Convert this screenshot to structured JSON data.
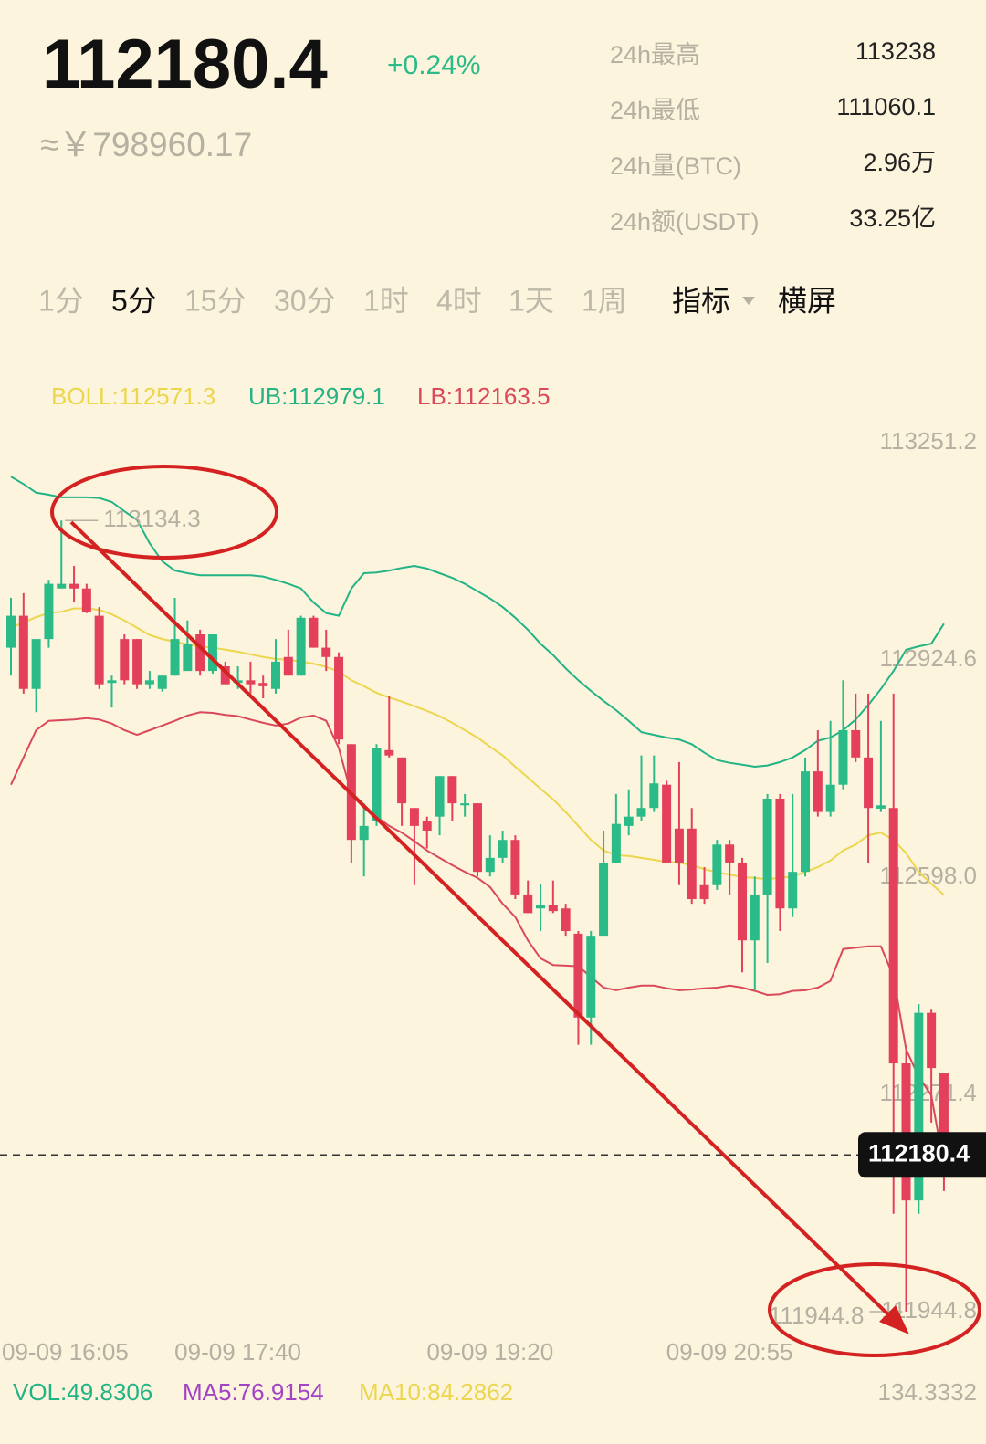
{
  "header": {
    "price": "112180.4",
    "change": "+0.24%",
    "approx": "≈￥798960.17"
  },
  "stats": [
    {
      "label": "24h最高",
      "value": "113238"
    },
    {
      "label": "24h最低",
      "value": "111060.1"
    },
    {
      "label": "24h量(BTC)",
      "value": "2.96万"
    },
    {
      "label": "24h额(USDT)",
      "value": "33.25亿"
    }
  ],
  "tabs": [
    "1分",
    "5分",
    "15分",
    "30分",
    "1时",
    "4时",
    "1天",
    "1周"
  ],
  "active_tab": "5分",
  "tools": [
    "指标",
    "横屏"
  ],
  "volume": {
    "legend": [
      {
        "text": "VOL:49.8306",
        "color": "#1fb386"
      },
      {
        "text": "MA5:76.9154",
        "color": "#a242c4"
      },
      {
        "text": "MA10:84.2862",
        "color": "#ecd64e"
      }
    ],
    "axis_label": "134.3332"
  },
  "chart_data": {
    "type": "candlestick",
    "categories": [
      "09-09 16:05",
      null,
      null,
      null,
      null,
      null,
      null,
      null,
      null,
      null,
      null,
      null,
      null,
      null,
      null,
      null,
      null,
      null,
      "09-09 17:40",
      null,
      null,
      null,
      null,
      null,
      null,
      null,
      null,
      null,
      null,
      null,
      null,
      null,
      null,
      null,
      null,
      null,
      null,
      null,
      "09-09 19:20",
      null,
      null,
      null,
      null,
      null,
      null,
      null,
      null,
      null,
      null,
      null,
      null,
      null,
      null,
      null,
      null,
      null,
      null,
      "09-09 20:55",
      null,
      null,
      null,
      null,
      null,
      null,
      null,
      null,
      null,
      null,
      null,
      null,
      null,
      null,
      null,
      null,
      null
    ],
    "open": [
      112943,
      112991,
      112881,
      112956,
      113032,
      113039,
      113032,
      112991,
      112890,
      112956,
      112956,
      112888,
      112881,
      112901,
      112908,
      112963,
      112908,
      112915,
      112890,
      112894,
      112890,
      112881,
      112929,
      112901,
      112988,
      112943,
      112929,
      112798,
      112654,
      112682,
      112789,
      112778,
      112702,
      112682,
      112689,
      112750,
      112706,
      112709,
      112606,
      112627,
      112654,
      112572,
      112551,
      112556,
      112551,
      112513,
      112387,
      112510,
      112620,
      112675,
      112689,
      112702,
      112737,
      112671,
      112671,
      112586,
      112586,
      112647,
      112620,
      112503,
      112572,
      112716,
      112551,
      112606,
      112757,
      112696,
      112737,
      112819,
      112778,
      112701,
      112702,
      112318,
      112112,
      112394,
      112304
    ],
    "high": [
      113018,
      113025,
      112956,
      113045,
      113134.3,
      113066,
      113039,
      113004,
      112901,
      112963,
      112956,
      112908,
      112901,
      113018,
      112984,
      112970,
      112963,
      112922,
      112915,
      112922,
      112901,
      112956,
      112970,
      112991,
      112991,
      112970,
      112936,
      112798,
      112709,
      112798,
      112871,
      112778,
      112702,
      112689,
      112750,
      112750,
      112723,
      112709,
      112661,
      112668,
      112661,
      112593,
      112588,
      112593,
      112558,
      112517,
      112517,
      112668,
      112723,
      112730,
      112781,
      112781,
      112743,
      112771,
      112702,
      112613,
      112654,
      112654,
      112627,
      112599,
      112723,
      112723,
      112723,
      112778,
      112819,
      112833,
      112894,
      112874,
      112874,
      112833,
      112874,
      112339,
      112407,
      112400,
      112304
    ],
    "low": [
      112901,
      112874,
      112846,
      112943,
      113032,
      113011,
      112995,
      112881,
      112853,
      112888,
      112881,
      112881,
      112877,
      112901,
      112908,
      112901,
      112904,
      112888,
      112881,
      112874,
      112867,
      112874,
      112901,
      112901,
      112943,
      112908,
      112798,
      112620,
      112599,
      112675,
      112778,
      112675,
      112586,
      112641,
      112661,
      112682,
      112689,
      112599,
      112599,
      112620,
      112565,
      112544,
      112517,
      112544,
      112510,
      112346,
      112346,
      112510,
      112620,
      112661,
      112682,
      112696,
      112620,
      112586,
      112558,
      112558,
      112579,
      112572,
      112455,
      112428,
      112469,
      112517,
      112538,
      112599,
      112689,
      112689,
      112730,
      112771,
      112620,
      112696,
      112092,
      111944.8,
      112092,
      112229,
      112126
    ],
    "close": [
      112991,
      112881,
      112956,
      113039,
      113039,
      113032,
      112997,
      112888,
      112894,
      112894,
      112888,
      112894,
      112901,
      112956,
      112949,
      112908,
      112963,
      112888,
      112894,
      112888,
      112885,
      112922,
      112901,
      112988,
      112943,
      112929,
      112805,
      112654,
      112675,
      112792,
      112781,
      112709,
      112675,
      112668,
      112750,
      112709,
      112709,
      112606,
      112627,
      112654,
      112572,
      112544,
      112556,
      112547,
      112517,
      112387,
      112510,
      112620,
      112678,
      112689,
      112702,
      112739,
      112620,
      112620,
      112565,
      112565,
      112647,
      112620,
      112503,
      112572,
      112716,
      112551,
      112606,
      112757,
      112696,
      112737,
      112819,
      112778,
      112702,
      112706,
      112318,
      112112,
      112394,
      112311,
      112180.4
    ],
    "up_color": "#2bbb88",
    "down_color": "#e4405c",
    "series": [
      {
        "name": "BOLL:112571.3",
        "color": "#ecd64e",
        "values": [
          112973,
          112981,
          112989,
          112995,
          112997,
          113002,
          113002,
          113000,
          112993,
          112984,
          112973,
          112962,
          112956,
          112952,
          112948,
          112945,
          112943,
          112940,
          112937,
          112933,
          112929,
          112926,
          112925,
          112922,
          112919,
          112914,
          112907,
          112894,
          112885,
          112875,
          112868,
          112862,
          112855,
          112848,
          112840,
          112830,
          112819,
          112808,
          112794,
          112781,
          112764,
          112748,
          112731,
          112715,
          112696,
          112675,
          112654,
          112638,
          112631,
          112630,
          112627,
          112624,
          112621,
          112620,
          112616,
          112610,
          112605,
          112602,
          112598,
          112597,
          112595,
          112597,
          112599,
          112606,
          112613,
          112623,
          112638,
          112647,
          112661,
          112665,
          112654,
          112634,
          112606,
          112588,
          112571.3
        ]
      },
      {
        "name": "UB:112979.1",
        "color": "#22b386",
        "values": [
          113200,
          113189,
          113176,
          113173,
          113169,
          113169,
          113169,
          113168,
          113162,
          113148,
          113135,
          113100,
          113073,
          113059,
          113055,
          113052,
          113052,
          113052,
          113052,
          113052,
          113050,
          113045,
          113039,
          113032,
          113011,
          112995,
          112991,
          113032,
          113055,
          113056,
          113059,
          113063,
          113066,
          113062,
          113055,
          113048,
          113039,
          113028,
          113017,
          113004,
          112988,
          112970,
          112949,
          112932,
          112912,
          112894,
          112878,
          112863,
          112849,
          112833,
          112816,
          112812,
          112808,
          112805,
          112798,
          112785,
          112774,
          112770,
          112767,
          112764,
          112766,
          112771,
          112778,
          112789,
          112803,
          112808,
          112819,
          112835,
          112857,
          112881,
          112908,
          112940,
          112945,
          112949,
          112979.1
        ]
      },
      {
        "name": "LB:112163.5",
        "color": "#d9485c",
        "values": [
          112737,
          112778,
          112819,
          112833,
          112834,
          112835,
          112837,
          112835,
          112829,
          112819,
          112812,
          112819,
          112826,
          112833,
          112841,
          112846,
          112845,
          112842,
          112840,
          112835,
          112830,
          112826,
          112829,
          112838,
          112841,
          112833,
          112792,
          112723,
          112702,
          112689,
          112675,
          112665,
          112652,
          112638,
          112627,
          112616,
          112606,
          112597,
          112583,
          112558,
          112538,
          112503,
          112476,
          112466,
          112465,
          112464,
          112448,
          112432,
          112428,
          112432,
          112435,
          112435,
          112431,
          112428,
          112429,
          112431,
          112432,
          112435,
          112432,
          112427,
          112421,
          112422,
          112427,
          112428,
          112432,
          112442,
          112490,
          112492,
          112494,
          112494,
          112448,
          112339,
          112298,
          112270,
          112163.5
        ]
      }
    ],
    "ylim": [
      111913.2,
      113271.8
    ],
    "yticks": [
      113251.2,
      112924.6,
      {
        "value": 112598.0,
        "label": "112598.0"
      },
      112271.4,
      111944.8
    ],
    "grid": false
  }
}
